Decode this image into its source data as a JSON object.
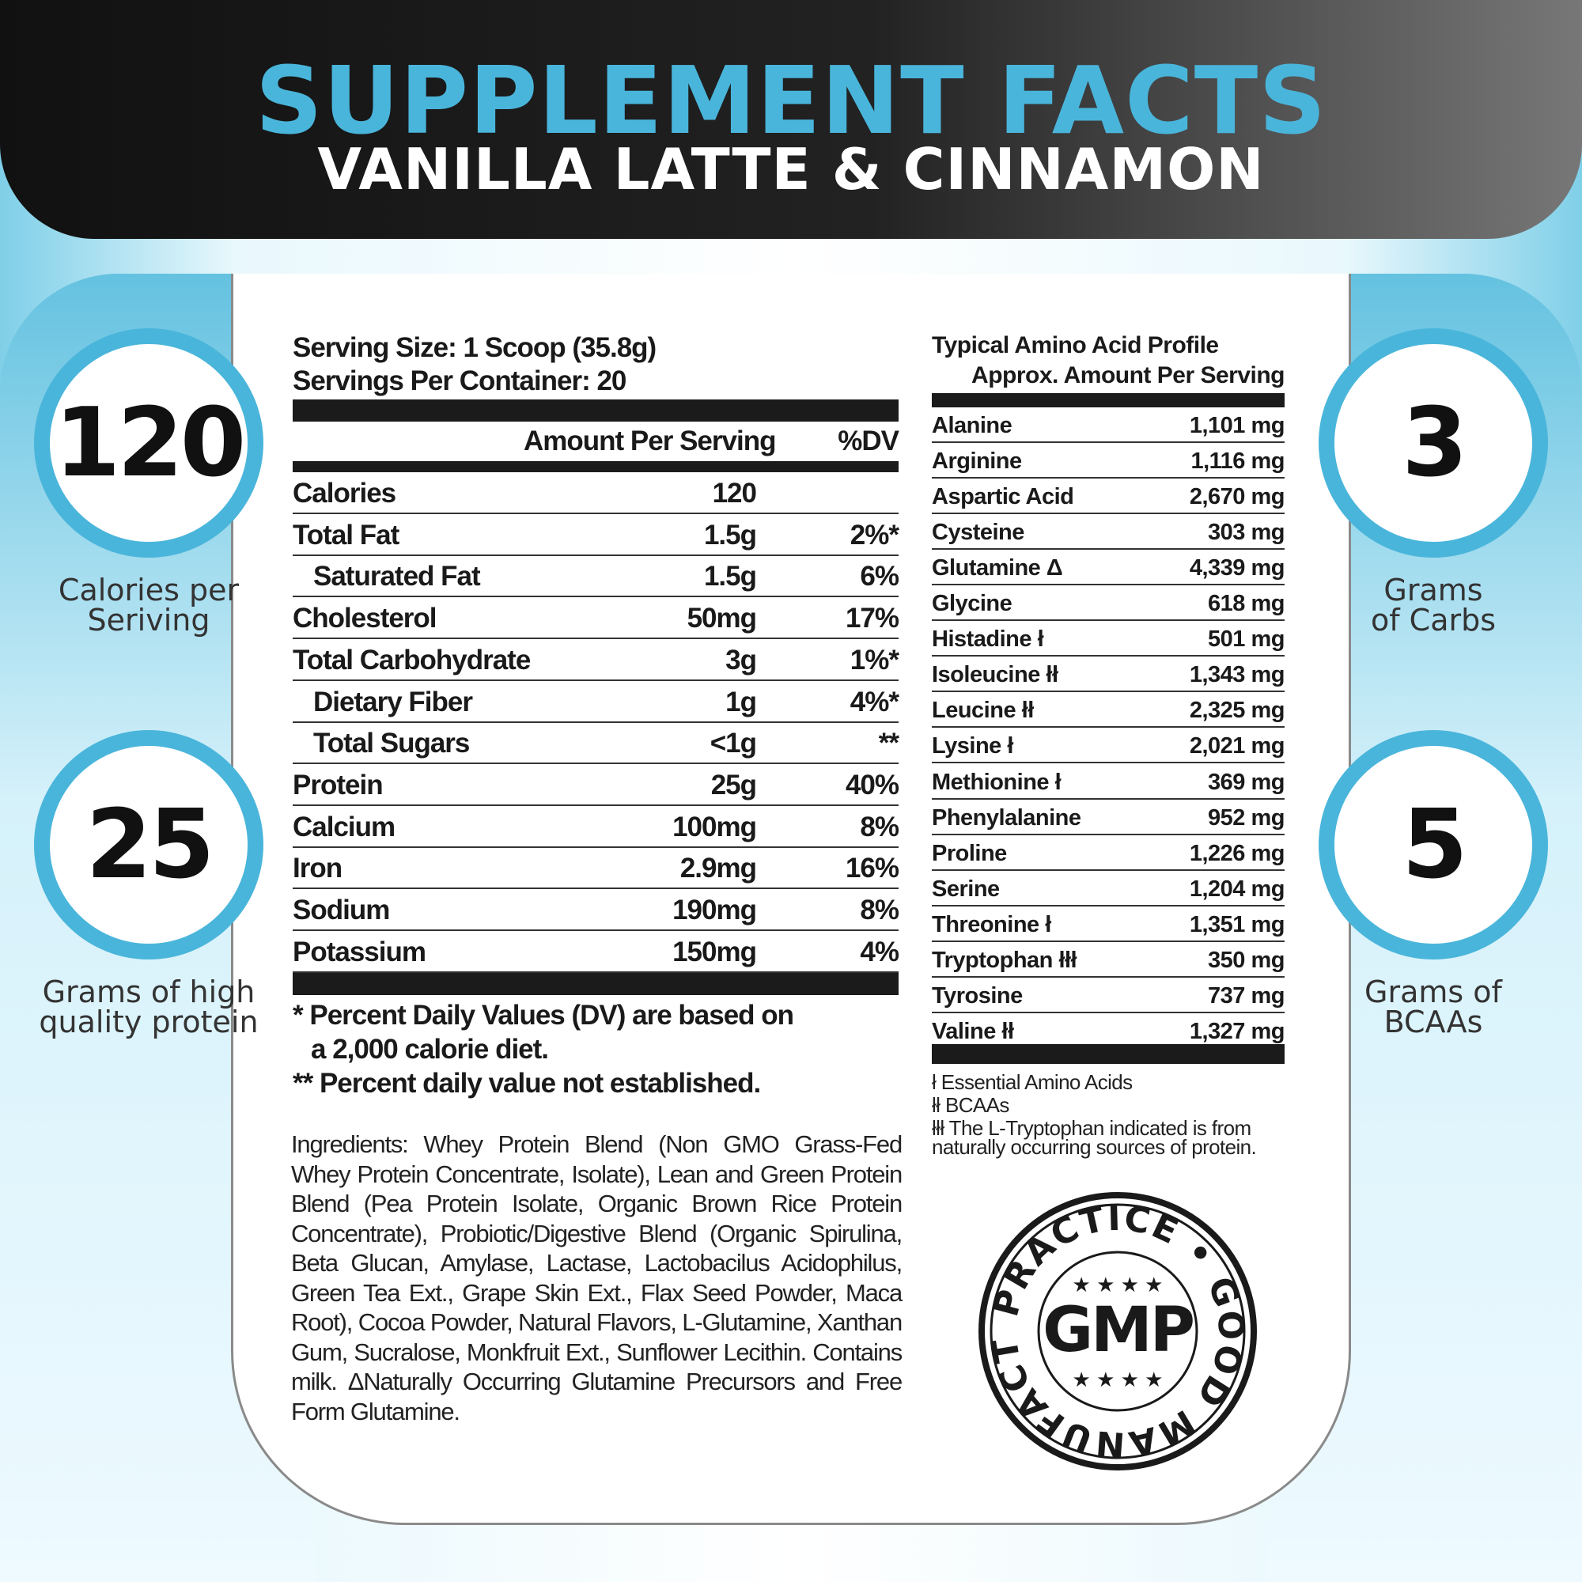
{
  "header": {
    "title": "SUPPLEMENT FACTS",
    "subtitle": "VANILLA LATTE & CINNAMON"
  },
  "badges": [
    {
      "value": "120",
      "label": "Calories per Seriving"
    },
    {
      "value": "25",
      "label": "Grams of high quality protein"
    },
    {
      "value": "3",
      "label": "Grams of Carbs"
    },
    {
      "value": "5",
      "label": "Grams of BCAAs"
    }
  ],
  "colors": {
    "accent": "#4ab5db",
    "header_bg": "#1a1a1a"
  },
  "nutrition": {
    "serving_size": "Serving Size: 1 Scoop (35.8g)",
    "servings_per_container": "Servings Per Container: 20",
    "col_amount": "Amount Per Serving",
    "col_dv": "%DV",
    "rows": [
      {
        "name": "Calories",
        "amount": "120",
        "dv": "",
        "indent": false
      },
      {
        "name": "Total Fat",
        "amount": "1.5g",
        "dv": "2%*",
        "indent": false
      },
      {
        "name": "Saturated Fat",
        "amount": "1.5g",
        "dv": "6%",
        "indent": true
      },
      {
        "name": "Cholesterol",
        "amount": "50mg",
        "dv": "17%",
        "indent": false
      },
      {
        "name": "Total Carbohydrate",
        "amount": "3g",
        "dv": "1%*",
        "indent": false
      },
      {
        "name": "Dietary Fiber",
        "amount": "1g",
        "dv": "4%*",
        "indent": true
      },
      {
        "name": "Total Sugars",
        "amount": "<1g",
        "dv": "**",
        "indent": true
      },
      {
        "name": "Protein",
        "amount": "25g",
        "dv": "40%",
        "indent": false
      },
      {
        "name": "Calcium",
        "amount": "100mg",
        "dv": "8%",
        "indent": false
      },
      {
        "name": "Iron",
        "amount": "2.9mg",
        "dv": "16%",
        "indent": false
      },
      {
        "name": "Sodium",
        "amount": "190mg",
        "dv": "8%",
        "indent": false
      },
      {
        "name": "Potassium",
        "amount": "150mg",
        "dv": "4%",
        "indent": false
      }
    ],
    "footnote1a": "* Percent Daily Values (DV) are based on",
    "footnote1b": "a 2,000 calorie diet.",
    "footnote2": "** Percent daily value not established.",
    "ingredients": "Ingredients: Whey Protein Blend (Non GMO Grass-Fed Whey Protein Concentrate, Isolate), Lean and Green Protein Blend (Pea Protein Isolate, Organic Brown Rice Protein Concentrate), Probiotic/Digestive Blend (Organic Spirulina, Beta Glucan, Amylase, Lactase, Lactobacilus Acidophilus, Green Tea Ext., Grape Skin Ext., Flax Seed Powder, Maca Root), Cocoa Powder, Natural Flavors, L-Glutamine, Xanthan Gum, Sucralose, Monkfruit Ext., Sunflower Lecithin. Contains milk. ΔNaturally Occurring Glutamine Precursors and Free Form Glutamine."
  },
  "amino": {
    "title": "Typical Amino Acid Profile",
    "subtitle": "Approx. Amount Per Serving",
    "rows": [
      {
        "name": "Alanine",
        "amount": "1,101 mg"
      },
      {
        "name": "Arginine",
        "amount": "1,116 mg"
      },
      {
        "name": "Aspartic Acid",
        "amount": "2,670 mg"
      },
      {
        "name": "Cysteine",
        "amount": "303 mg"
      },
      {
        "name": "Glutamine Δ",
        "amount": "4,339 mg"
      },
      {
        "name": "Glycine",
        "amount": "618 mg"
      },
      {
        "name": "Histadine ł",
        "amount": "501 mg"
      },
      {
        "name": "Isoleucine łł",
        "amount": "1,343 mg"
      },
      {
        "name": "Leucine łł",
        "amount": "2,325 mg"
      },
      {
        "name": "Lysine ł",
        "amount": "2,021 mg"
      },
      {
        "name": "Methionine ł",
        "amount": "369 mg"
      },
      {
        "name": "Phenylalanine",
        "amount": "952 mg"
      },
      {
        "name": "Proline",
        "amount": "1,226 mg"
      },
      {
        "name": "Serine",
        "amount": "1,204 mg"
      },
      {
        "name": "Threonine ł",
        "amount": "1,351 mg"
      },
      {
        "name": "Tryptophan łłł",
        "amount": "350 mg"
      },
      {
        "name": "Tyrosine",
        "amount": "737 mg"
      },
      {
        "name": "Valine łł",
        "amount": "1,327 mg"
      }
    ],
    "foot1": "ł Essential Amino Acids",
    "foot2": "łł BCAAs",
    "foot3": "łłł The L-Tryptophan indicated is from",
    "foot4": "naturally occurring sources of protein."
  },
  "seal": {
    "center": "GMP",
    "ring_text": "GOOD MANUFACTURING PRACTICE"
  }
}
